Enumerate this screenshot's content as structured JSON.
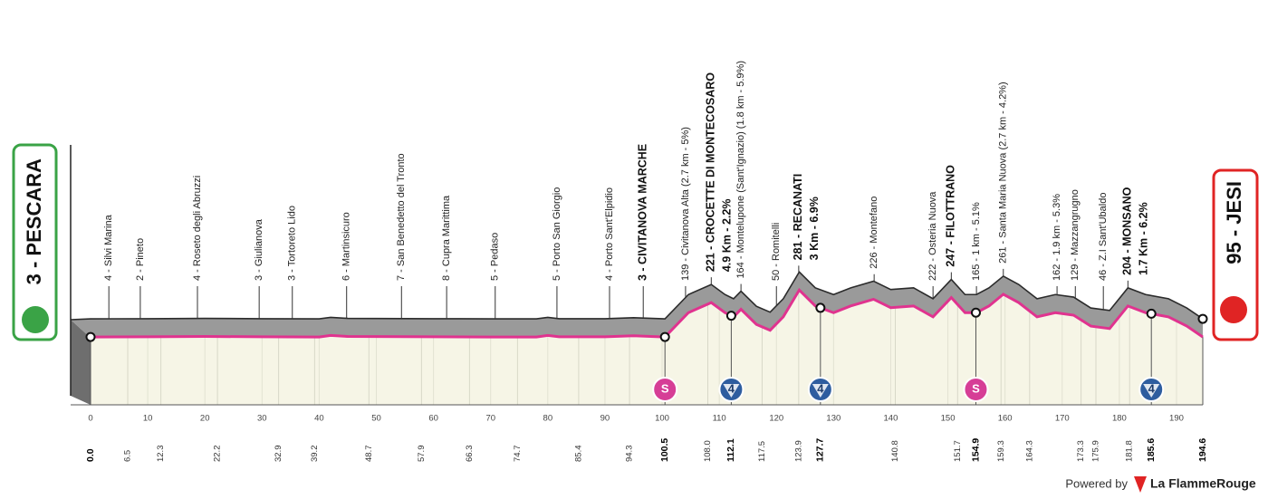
{
  "chart_data": {
    "type": "profile",
    "start": {
      "label": "3 - PESCARA",
      "color": "#3aa346"
    },
    "finish": {
      "label": "95 - JESI",
      "color": "#e02424"
    },
    "xlim": [
      0,
      194.6
    ],
    "ylim": [
      0,
      400
    ],
    "xticks": [
      0,
      10,
      20,
      30,
      40,
      50,
      60,
      70,
      80,
      90,
      100,
      110,
      120,
      130,
      140,
      150,
      160,
      170,
      180,
      190
    ],
    "distance_labels": [
      {
        "value": 0,
        "label": "0.0",
        "bold": true
      },
      {
        "value": 6.5,
        "label": "6.5"
      },
      {
        "value": 12.3,
        "label": "12.3"
      },
      {
        "value": 22.2,
        "label": "22.2"
      },
      {
        "value": 32.9,
        "label": "32.9"
      },
      {
        "value": 39.2,
        "label": "39.2"
      },
      {
        "value": 48.7,
        "label": "48.7"
      },
      {
        "value": 57.9,
        "label": "57.9"
      },
      {
        "value": 66.3,
        "label": "66.3"
      },
      {
        "value": 74.7,
        "label": "74.7"
      },
      {
        "value": 85.4,
        "label": "85.4"
      },
      {
        "value": 94.3,
        "label": "94.3"
      },
      {
        "value": 100.5,
        "label": "100.5",
        "bold": true
      },
      {
        "value": 108,
        "label": "108.0"
      },
      {
        "value": 112.1,
        "label": "112.1",
        "bold": true
      },
      {
        "value": 117.5,
        "label": "117.5"
      },
      {
        "value": 123.9,
        "label": "123.9"
      },
      {
        "value": 127.7,
        "label": "127.7",
        "bold": true
      },
      {
        "value": 140.8,
        "label": "140.8"
      },
      {
        "value": 151.7,
        "label": "151.7"
      },
      {
        "value": 154.9,
        "label": "154.9",
        "bold": true
      },
      {
        "value": 159.3,
        "label": "159.3"
      },
      {
        "value": 164.3,
        "label": "164.3"
      },
      {
        "value": 173.3,
        "label": "173.3"
      },
      {
        "value": 175.9,
        "label": "175.9"
      },
      {
        "value": 181.8,
        "label": "181.8"
      },
      {
        "value": 185.6,
        "label": "185.6",
        "bold": true
      },
      {
        "value": 194.6,
        "label": "194.6",
        "bold": true
      }
    ],
    "profile": {
      "color": "#e0338f",
      "km": [
        0,
        10,
        20,
        30,
        40,
        42,
        45,
        60,
        70,
        78,
        80,
        82,
        90,
        95,
        100.5,
        104.6,
        108.6,
        111,
        112.5,
        113.8,
        116.5,
        118.9,
        121.2,
        124,
        126.8,
        130,
        133,
        137,
        140,
        144,
        147.4,
        150.6,
        153,
        155,
        157.2,
        159.7,
        162.4,
        165.6,
        168.8,
        172,
        175,
        178.3,
        181.5,
        184.6,
        188.6,
        191.8,
        194.6
      ],
      "alt": [
        5,
        6,
        8,
        6,
        5,
        14,
        8,
        6,
        5,
        5,
        14,
        6,
        6,
        12,
        5,
        150,
        210,
        150,
        125,
        170,
        80,
        45,
        125,
        285,
        190,
        150,
        190,
        230,
        180,
        190,
        125,
        240,
        150,
        150,
        190,
        260,
        210,
        125,
        150,
        135,
        70,
        55,
        190,
        150,
        125,
        70,
        5
      ]
    },
    "waypoints": [
      {
        "km": 3.2,
        "lines": [
          "4 - Silvi Marina"
        ]
      },
      {
        "km": 8.7,
        "lines": [
          "2 - Pineto"
        ]
      },
      {
        "km": 18.7,
        "lines": [
          "4 - Roseto degli Abruzzi"
        ]
      },
      {
        "km": 29.5,
        "lines": [
          "3 - Giulianova"
        ]
      },
      {
        "km": 35.3,
        "lines": [
          "3 - Tortoreto Lido"
        ]
      },
      {
        "km": 44.8,
        "lines": [
          "6 - Martinsicuro"
        ]
      },
      {
        "km": 54.4,
        "lines": [
          "7 - San Benedetto del Tronto"
        ]
      },
      {
        "km": 62.3,
        "lines": [
          "8 - Cupra Marittima"
        ]
      },
      {
        "km": 70.8,
        "lines": [
          "5 - Pedaso"
        ]
      },
      {
        "km": 81.6,
        "lines": [
          "5 - Porto San Giorgio"
        ]
      },
      {
        "km": 90.8,
        "lines": [
          "4 - Porto Sant'Elpidio"
        ]
      },
      {
        "km": 96.7,
        "lines": [
          "3 - CIVITANOVA MARCHE"
        ],
        "bold": true
      },
      {
        "km": 104.1,
        "lines": [
          "139 - Civitanova Alta (2.7 km - 5%)"
        ]
      },
      {
        "km": 108.6,
        "lines": [
          "221 - CROCETTE DI MONTECOSARO",
          "4.9 Km - 2.2%"
        ],
        "bold": true
      },
      {
        "km": 113.8,
        "lines": [
          "164 - Montelupone (Sant'Ignazio) (1.8 km - 5.9%)"
        ]
      },
      {
        "km": 120.0,
        "lines": [
          "50 - Romitelli"
        ]
      },
      {
        "km": 123.9,
        "lines": [
          "281 - RECANATI",
          "3 Km - 6.9%"
        ],
        "bold": true
      },
      {
        "km": 137.1,
        "lines": [
          "226 - Montefano"
        ]
      },
      {
        "km": 147.4,
        "lines": [
          "222 - Osteria Nuova"
        ]
      },
      {
        "km": 150.6,
        "lines": [
          "247 - FILOTTRANO"
        ],
        "bold": true
      },
      {
        "km": 155.0,
        "lines": [
          "165 - 1 km - 5.1%"
        ]
      },
      {
        "km": 159.7,
        "lines": [
          "261 - Santa Maria Nuova (2.7 km - 4.2%)"
        ]
      },
      {
        "km": 169.1,
        "lines": [
          "162 - 1.9 km - 5.3%"
        ]
      },
      {
        "km": 172.3,
        "lines": [
          "129 - Mazzangrugno"
        ]
      },
      {
        "km": 177.2,
        "lines": [
          "46 - Z.I Sant'Ubaldo"
        ]
      },
      {
        "km": 181.5,
        "lines": [
          "204 - MONSANO",
          "1.7 Km - 6.2%"
        ],
        "bold": true
      }
    ],
    "icons": [
      {
        "km": 100.5,
        "kind": "sprint",
        "label": "S",
        "color": "#d63e96"
      },
      {
        "km": 112.1,
        "kind": "climb",
        "label": "4",
        "color": "#2e5d9f"
      },
      {
        "km": 127.7,
        "kind": "climb",
        "label": "4",
        "color": "#2e5d9f"
      },
      {
        "km": 154.9,
        "kind": "sprint",
        "label": "S",
        "color": "#d63e96"
      },
      {
        "km": 185.6,
        "kind": "climb",
        "label": "4",
        "color": "#2e5d9f"
      }
    ],
    "footer": {
      "powered": "Powered by",
      "brand": "La FlammeRouge"
    }
  }
}
